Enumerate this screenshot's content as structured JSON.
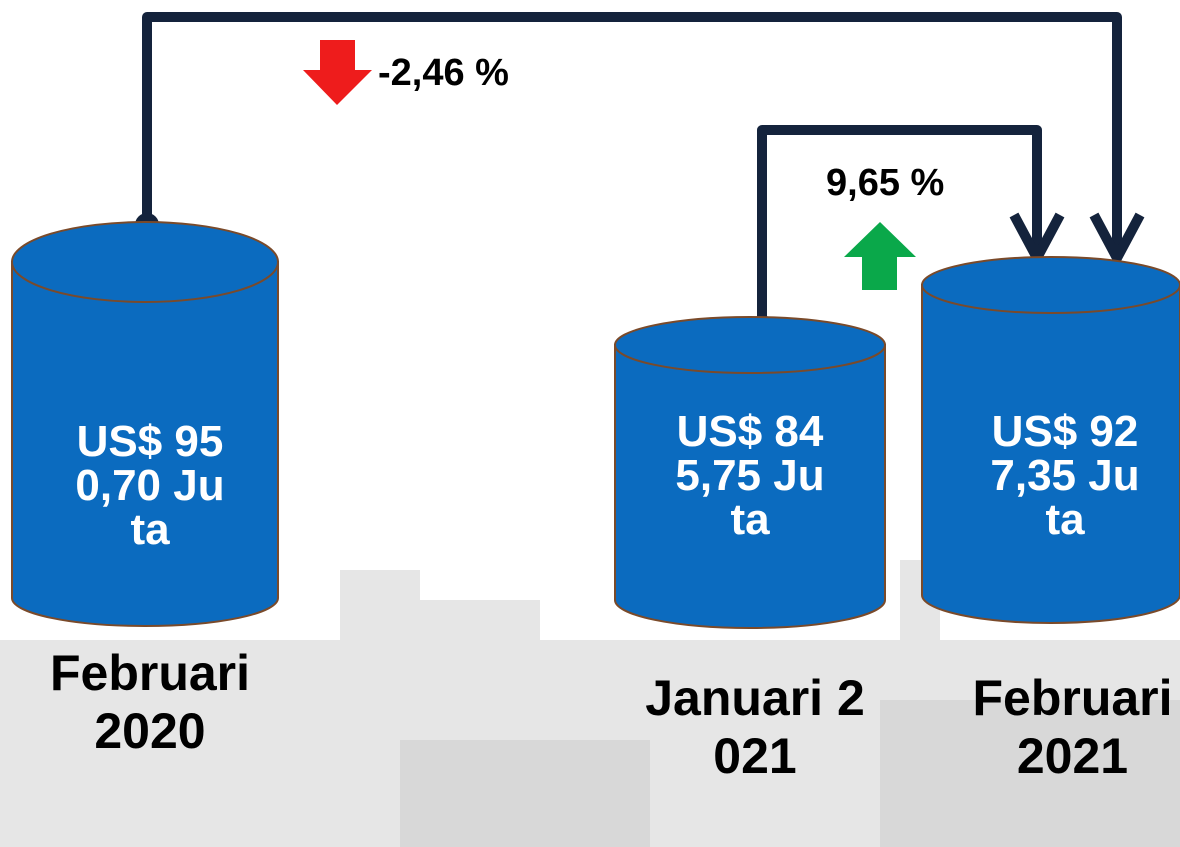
{
  "changes": [
    {
      "label": "-2,46 %"
    },
    {
      "label": "9,65 %"
    }
  ],
  "nodes": [
    {
      "value": "US$ 950,70 Juta",
      "period": "Februari 2020"
    },
    {
      "value": "US$ 845,75 Juta",
      "period": "Januari 2021"
    },
    {
      "value": "US$ 927,35 Juta",
      "period": "Februari 2021"
    }
  ]
}
